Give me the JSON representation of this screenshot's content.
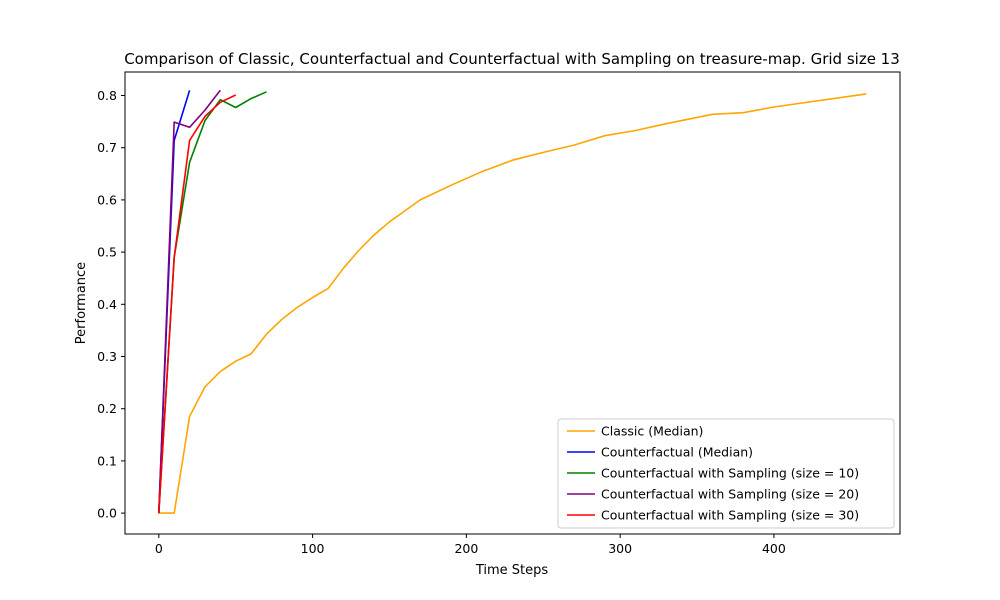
{
  "chart_data": {
    "type": "line",
    "title": "Comparison of Classic, Counterfactual and Counterfactual with Sampling on treasure-map. Grid size 13",
    "xlabel": "Time Steps",
    "ylabel": "Performance",
    "xlim": [
      -22,
      482
    ],
    "ylim": [
      -0.04,
      0.845
    ],
    "xticks": [
      0,
      100,
      200,
      300,
      400
    ],
    "yticks": [
      0.0,
      0.1,
      0.2,
      0.3,
      0.4,
      0.5,
      0.6,
      0.7,
      0.8
    ],
    "ytick_labels": [
      "0.0",
      "0.1",
      "0.2",
      "0.3",
      "0.4",
      "0.5",
      "0.6",
      "0.7",
      "0.8"
    ],
    "legend_position": "lower-right",
    "grid": false,
    "series": [
      {
        "name": "Classic (Median)",
        "color": "#ffa500",
        "x": [
          0,
          10,
          20,
          30,
          40,
          50,
          60,
          70,
          80,
          90,
          100,
          110,
          120,
          130,
          140,
          150,
          160,
          170,
          190,
          210,
          230,
          250,
          270,
          290,
          310,
          330,
          360,
          380,
          400,
          460
        ],
        "y": [
          0.0,
          0.0,
          0.185,
          0.242,
          0.271,
          0.291,
          0.305,
          0.343,
          0.371,
          0.394,
          0.413,
          0.43,
          0.469,
          0.503,
          0.533,
          0.558,
          0.579,
          0.6,
          0.628,
          0.654,
          0.676,
          0.691,
          0.705,
          0.723,
          0.733,
          0.746,
          0.764,
          0.767,
          0.778,
          0.803
        ]
      },
      {
        "name": "Counterfactual (Median)",
        "color": "#0000ff",
        "x": [
          0,
          10,
          20
        ],
        "y": [
          0.0,
          0.714,
          0.81
        ]
      },
      {
        "name": "Counterfactual with Sampling (size = 10)",
        "color": "#008000",
        "x": [
          0,
          10,
          20,
          30,
          40,
          50,
          60,
          70
        ],
        "y": [
          0.0,
          0.49,
          0.672,
          0.752,
          0.792,
          0.777,
          0.794,
          0.807
        ]
      },
      {
        "name": "Counterfactual with Sampling (size = 20)",
        "color": "#800080",
        "x": [
          0,
          10,
          20,
          30,
          40
        ],
        "y": [
          0.0,
          0.749,
          0.739,
          0.772,
          0.81
        ]
      },
      {
        "name": "Counterfactual with Sampling (size = 30)",
        "color": "#ff0000",
        "x": [
          0,
          10,
          20,
          30,
          40,
          50
        ],
        "y": [
          0.0,
          0.49,
          0.714,
          0.76,
          0.787,
          0.801
        ]
      }
    ]
  }
}
